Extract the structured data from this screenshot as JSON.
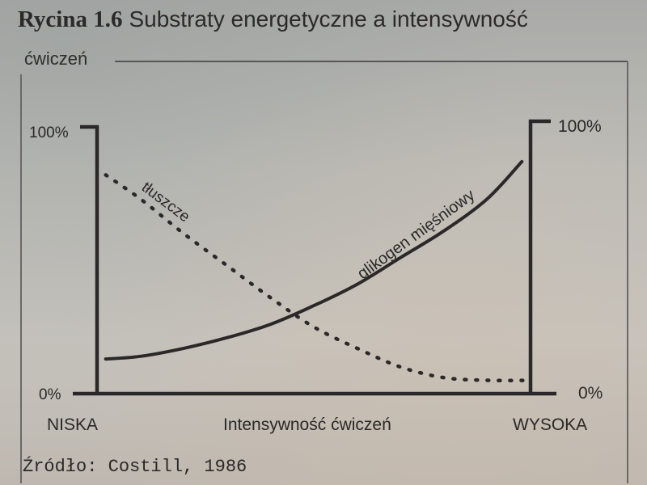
{
  "figure": {
    "label": "Rycina 1.6",
    "title": "Substraty energetyczne a intensywność",
    "title_line2": "ćwiczeń",
    "source": "Źródło: Costill, 1986"
  },
  "chart_data": {
    "type": "line",
    "title": "Rycina 1.6 Substraty energetyczne a intensywność ćwiczeń",
    "xlabel": "Intensywność ćwiczeń",
    "x_tick_labels": [
      "NISKA",
      "WYSOKA"
    ],
    "ylabel_left_ticks": [
      "100%",
      "0%"
    ],
    "ylabel_right_ticks": [
      "100%",
      "0%"
    ],
    "ylim": [
      0,
      100
    ],
    "xlim": [
      0,
      1
    ],
    "grid": false,
    "legend": "inline labels on curves",
    "series": [
      {
        "name": "tłuszcze",
        "style": "dotted",
        "points": [
          [
            0.02,
            82
          ],
          [
            0.1,
            73
          ],
          [
            0.2,
            60
          ],
          [
            0.3,
            48
          ],
          [
            0.4,
            36
          ],
          [
            0.5,
            25
          ],
          [
            0.6,
            17
          ],
          [
            0.7,
            10
          ],
          [
            0.8,
            6
          ],
          [
            0.9,
            5
          ],
          [
            1.0,
            5
          ]
        ]
      },
      {
        "name": "glikogen mięśniowy",
        "style": "solid",
        "points": [
          [
            0.02,
            13
          ],
          [
            0.1,
            14
          ],
          [
            0.2,
            17
          ],
          [
            0.3,
            21
          ],
          [
            0.4,
            26
          ],
          [
            0.5,
            33
          ],
          [
            0.6,
            41
          ],
          [
            0.7,
            51
          ],
          [
            0.8,
            61
          ],
          [
            0.9,
            73
          ],
          [
            0.98,
            87
          ]
        ]
      }
    ],
    "colors": {
      "ink": "#2a2828",
      "frame": "#575555"
    }
  }
}
